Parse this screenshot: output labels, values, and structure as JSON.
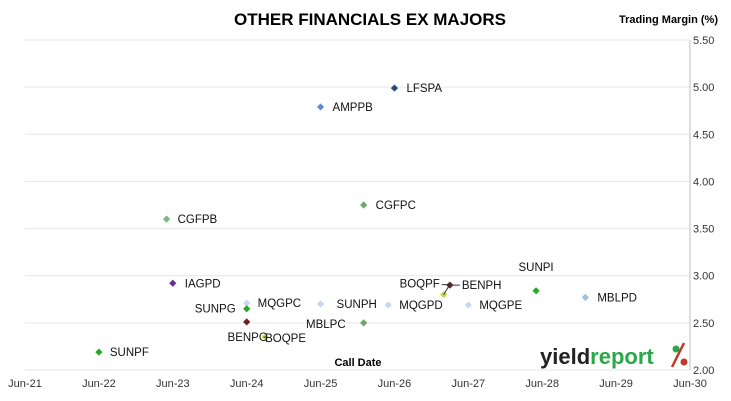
{
  "chart_data": {
    "type": "scatter",
    "title": "OTHER FINANCIALS EX MAJORS",
    "xlabel": "Call Date",
    "ylabel": "Trading Margin (%)",
    "x_ticks": [
      "Jun-21",
      "Jun-22",
      "Jun-23",
      "Jun-24",
      "Jun-25",
      "Jun-26",
      "Jun-27",
      "Jun-28",
      "Jun-29",
      "Jun-30"
    ],
    "y_ticks": [
      "2.00",
      "2.50",
      "3.00",
      "3.50",
      "4.00",
      "4.50",
      "5.00",
      "5.50"
    ],
    "ylim": [
      2.0,
      5.5
    ],
    "xlim": [
      "2021-06",
      "2030-06"
    ],
    "grid": "horizontal",
    "points": [
      {
        "label": "LFSPA",
        "x": "2026-06-01",
        "y": 4.99,
        "color": "#1f4e79"
      },
      {
        "label": "AMPPB",
        "x": "2025-06-01",
        "y": 4.79,
        "color": "#5b8fd0"
      },
      {
        "label": "CGFPC",
        "x": "2026-01-01",
        "y": 3.75,
        "color": "#6aa870"
      },
      {
        "label": "CGFPB",
        "x": "2023-05-01",
        "y": 3.6,
        "color": "#7cb87c"
      },
      {
        "label": "IAGPD",
        "x": "2023-06-01",
        "y": 2.92,
        "color": "#6a2e8c"
      },
      {
        "label": "BOQPF",
        "x": "2027-02-01",
        "y": 2.8,
        "color": "#c8d84a"
      },
      {
        "label": "BENPH",
        "x": "2027-03-01",
        "y": 2.9,
        "color": "#6b2020"
      },
      {
        "label": "SUNPI",
        "x": "2028-05-01",
        "y": 2.84,
        "color": "#22aa22"
      },
      {
        "label": "MBLPD",
        "x": "2029-01-01",
        "y": 2.77,
        "color": "#9ec0e8"
      },
      {
        "label": "MQGPC",
        "x": "2024-06-01",
        "y": 2.71,
        "color": "#c5d8f0"
      },
      {
        "label": "SUNPH",
        "x": "2025-06-01",
        "y": 2.7,
        "color": "#c5d8f0"
      },
      {
        "label": "MQGPD",
        "x": "2026-05-01",
        "y": 2.69,
        "color": "#c5d8f0"
      },
      {
        "label": "MQGPE",
        "x": "2027-06-01",
        "y": 2.69,
        "color": "#c5d8f0"
      },
      {
        "label": "SUNPG",
        "x": "2024-06-01",
        "y": 2.65,
        "color": "#22aa22"
      },
      {
        "label": "BENPG",
        "x": "2024-06-01",
        "y": 2.51,
        "color": "#6b2020"
      },
      {
        "label": "MBLPC",
        "x": "2026-01-01",
        "y": 2.5,
        "color": "#6aa870"
      },
      {
        "label": "BOQPE",
        "x": "2024-09-01",
        "y": 2.35,
        "color": "#c8d84a"
      },
      {
        "label": "SUNPF",
        "x": "2022-06-01",
        "y": 2.19,
        "color": "#22aa22"
      }
    ]
  },
  "logo": {
    "text": "yieldreport",
    "accent": "#2aa84a",
    "mark_color": "#c0392b"
  }
}
